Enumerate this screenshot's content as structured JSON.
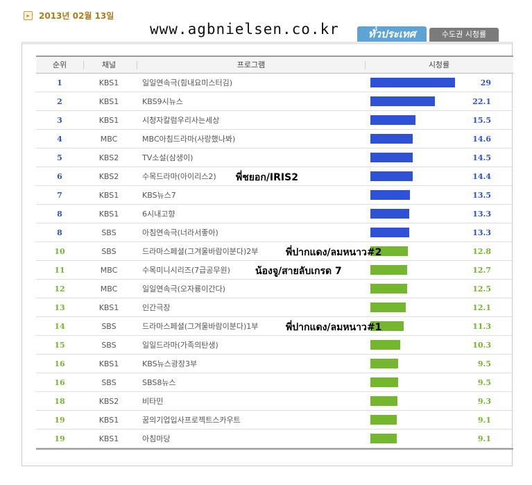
{
  "header": {
    "date": "2013년 02월 13일",
    "watermark": "www.agbnielsen.co.kr",
    "tab_active": "ทั่วประเทศ",
    "tab_inactive": "수도권 시청률"
  },
  "colors": {
    "blue": "#2f51d6",
    "green": "#74b72e",
    "date": "#b07a1c",
    "tab_active": "#5da4d4",
    "tab_inactive": "#7b7b7b"
  },
  "chart_data": {
    "type": "table",
    "columns": [
      "순위",
      "채널",
      "프로그램",
      "시청률"
    ],
    "xlim": [
      0,
      29
    ],
    "rows": [
      {
        "rank": "1",
        "channel": "KBS1",
        "program": "일일연속극(힘내요미스터김)",
        "value": 29.0,
        "value_label": "29",
        "color": "blue"
      },
      {
        "rank": "2",
        "channel": "KBS1",
        "program": "KBS9시뉴스",
        "value": 22.1,
        "value_label": "22.1",
        "color": "blue"
      },
      {
        "rank": "3",
        "channel": "KBS1",
        "program": "시청자칼럼우리사는세상",
        "value": 15.5,
        "value_label": "15.5",
        "color": "blue"
      },
      {
        "rank": "4",
        "channel": "MBC",
        "program": "MBC아침드라마(사랑했나봐)",
        "value": 14.6,
        "value_label": "14.6",
        "color": "blue"
      },
      {
        "rank": "5",
        "channel": "KBS2",
        "program": "TV소설(삼생이)",
        "value": 14.5,
        "value_label": "14.5",
        "color": "blue"
      },
      {
        "rank": "6",
        "channel": "KBS2",
        "program": "수목드라마(아이리스2)",
        "value": 14.4,
        "value_label": "14.4",
        "color": "blue"
      },
      {
        "rank": "7",
        "channel": "KBS1",
        "program": "KBS뉴스7",
        "value": 13.5,
        "value_label": "13.5",
        "color": "blue"
      },
      {
        "rank": "8",
        "channel": "KBS1",
        "program": "6시내고향",
        "value": 13.3,
        "value_label": "13.3",
        "color": "blue"
      },
      {
        "rank": "8",
        "channel": "SBS",
        "program": "아침연속극(너라서좋아)",
        "value": 13.3,
        "value_label": "13.3",
        "color": "blue"
      },
      {
        "rank": "10",
        "channel": "SBS",
        "program": "드라마스페셜(그겨울바람이분다)2부",
        "value": 12.8,
        "value_label": "12.8",
        "color": "green"
      },
      {
        "rank": "11",
        "channel": "MBC",
        "program": "수목미니시리즈(7급공무원)",
        "value": 12.7,
        "value_label": "12.7",
        "color": "green"
      },
      {
        "rank": "12",
        "channel": "MBC",
        "program": "일일연속극(오자룡이간다)",
        "value": 12.5,
        "value_label": "12.5",
        "color": "green"
      },
      {
        "rank": "13",
        "channel": "KBS1",
        "program": "인간극장",
        "value": 12.1,
        "value_label": "12.1",
        "color": "green"
      },
      {
        "rank": "14",
        "channel": "SBS",
        "program": "드라마스페셜(그겨울바람이분다)1부",
        "value": 11.3,
        "value_label": "11.3",
        "color": "green"
      },
      {
        "rank": "15",
        "channel": "SBS",
        "program": "일일드라마(가족의탄생)",
        "value": 10.3,
        "value_label": "10.3",
        "color": "green"
      },
      {
        "rank": "16",
        "channel": "KBS1",
        "program": "KBS뉴스광장3부",
        "value": 9.5,
        "value_label": "9.5",
        "color": "green"
      },
      {
        "rank": "16",
        "channel": "SBS",
        "program": "SBS8뉴스",
        "value": 9.5,
        "value_label": "9.5",
        "color": "green"
      },
      {
        "rank": "18",
        "channel": "KBS2",
        "program": "비타민",
        "value": 9.3,
        "value_label": "9.3",
        "color": "green"
      },
      {
        "rank": "19",
        "channel": "KBS1",
        "program": "꿈의기업입사프로젝트스카우트",
        "value": 9.1,
        "value_label": "9.1",
        "color": "green"
      },
      {
        "rank": "19",
        "channel": "KBS1",
        "program": "아침마당",
        "value": 9.1,
        "value_label": "9.1",
        "color": "green"
      }
    ],
    "annotations": [
      {
        "row": 5,
        "text": "พี่ชยอก/IRIS2"
      },
      {
        "row": 9,
        "text": "พี่ปากแดง/ลมหนาว#2"
      },
      {
        "row": 10,
        "text": "น้องจู/สายลับเกรด 7"
      },
      {
        "row": 13,
        "text": "พี่ปากแดง/ลมหนาว#1"
      }
    ]
  }
}
